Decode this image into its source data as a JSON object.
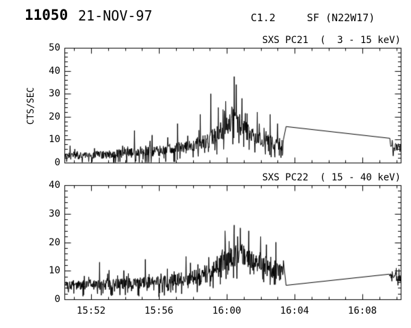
{
  "header": {
    "event_id": "11050",
    "date": "21-NOV-97",
    "goes_class": "C1.2",
    "flare_label": "SF (N22W17)"
  },
  "colors": {
    "foreground": "#000000",
    "background": "#ffffff"
  },
  "x_axis": {
    "tick_labels": [
      "15:52",
      "15:56",
      "16:00",
      "16:04",
      "16:08"
    ],
    "tick_times_min": [
      2,
      6,
      10,
      14,
      18
    ],
    "minor_step_min": 1,
    "t_start_min": 0.42,
    "t_end_min": 20.26,
    "time_reference": "15:50"
  },
  "chart_data": [
    {
      "type": "line",
      "name": "sxs-pc21",
      "title": "SXS PC21  (  3 - 15 keV)",
      "ylabel": "CTS/SEC",
      "ylim": [
        0,
        50
      ],
      "yticks": [
        0,
        10,
        20,
        30,
        40,
        50
      ],
      "y_minor_step": 2,
      "grid": false,
      "noisy_segment": {
        "t_start": 0.42,
        "t_end": 13.35,
        "envelope": [
          [
            0.42,
            3.0,
            3.0
          ],
          [
            2.0,
            3.2,
            3.2
          ],
          [
            4.0,
            4.0,
            3.6
          ],
          [
            6.0,
            5.0,
            4.2
          ],
          [
            7.5,
            6.5,
            5.0
          ],
          [
            8.8,
            9.0,
            6.0
          ],
          [
            9.6,
            13.0,
            7.5
          ],
          [
            10.3,
            19.0,
            9.0
          ],
          [
            10.7,
            17.0,
            8.5
          ],
          [
            11.4,
            12.0,
            6.5
          ],
          [
            12.3,
            9.5,
            5.5
          ],
          [
            13.35,
            7.5,
            4.5
          ]
        ],
        "spikes": [
          [
            4.55,
            14
          ],
          [
            5.6,
            12
          ],
          [
            7.1,
            17
          ],
          [
            8.45,
            21
          ],
          [
            9.05,
            30
          ],
          [
            9.5,
            24
          ],
          [
            10.44,
            37.5
          ],
          [
            10.56,
            34
          ],
          [
            10.9,
            28
          ],
          [
            11.8,
            22
          ],
          [
            12.55,
            21
          ],
          [
            13.0,
            17
          ]
        ]
      },
      "segment_line": [
        [
          13.5,
          15.7
        ],
        [
          19.62,
          10.6
        ]
      ],
      "end_noise": {
        "t_start": 19.66,
        "t_end": 20.26,
        "envelope": [
          [
            19.66,
            6.5,
            3.5
          ],
          [
            20.26,
            6.5,
            3.5
          ]
        ]
      }
    },
    {
      "type": "line",
      "name": "sxs-pc22",
      "title": "SXS PC22  ( 15 - 40 keV)",
      "ylabel": "",
      "ylim": [
        0,
        40
      ],
      "yticks": [
        0,
        10,
        20,
        30,
        40
      ],
      "y_minor_step": 2,
      "grid": false,
      "noisy_segment": {
        "t_start": 0.42,
        "t_end": 13.35,
        "envelope": [
          [
            0.42,
            5.0,
            3.2
          ],
          [
            3.0,
            5.2,
            3.4
          ],
          [
            6.0,
            6.0,
            4.0
          ],
          [
            8.0,
            7.5,
            4.6
          ],
          [
            9.3,
            11.0,
            5.5
          ],
          [
            10.1,
            15.0,
            6.5
          ],
          [
            10.9,
            15.5,
            7.0
          ],
          [
            11.8,
            13.0,
            6.5
          ],
          [
            12.6,
            10.5,
            6.0
          ],
          [
            13.35,
            9.0,
            5.0
          ]
        ],
        "spikes": [
          [
            2.5,
            13
          ],
          [
            5.2,
            14
          ],
          [
            7.6,
            15
          ],
          [
            9.9,
            24
          ],
          [
            10.45,
            26
          ],
          [
            10.8,
            25
          ],
          [
            11.3,
            24
          ],
          [
            12.0,
            22
          ],
          [
            12.9,
            20
          ]
        ]
      },
      "segment_line": [
        [
          13.5,
          4.9
        ],
        [
          19.58,
          8.8
        ]
      ],
      "end_noise": {
        "t_start": 19.62,
        "t_end": 20.26,
        "envelope": [
          [
            19.62,
            8.0,
            3.2
          ],
          [
            20.26,
            8.0,
            3.2
          ]
        ]
      }
    }
  ]
}
